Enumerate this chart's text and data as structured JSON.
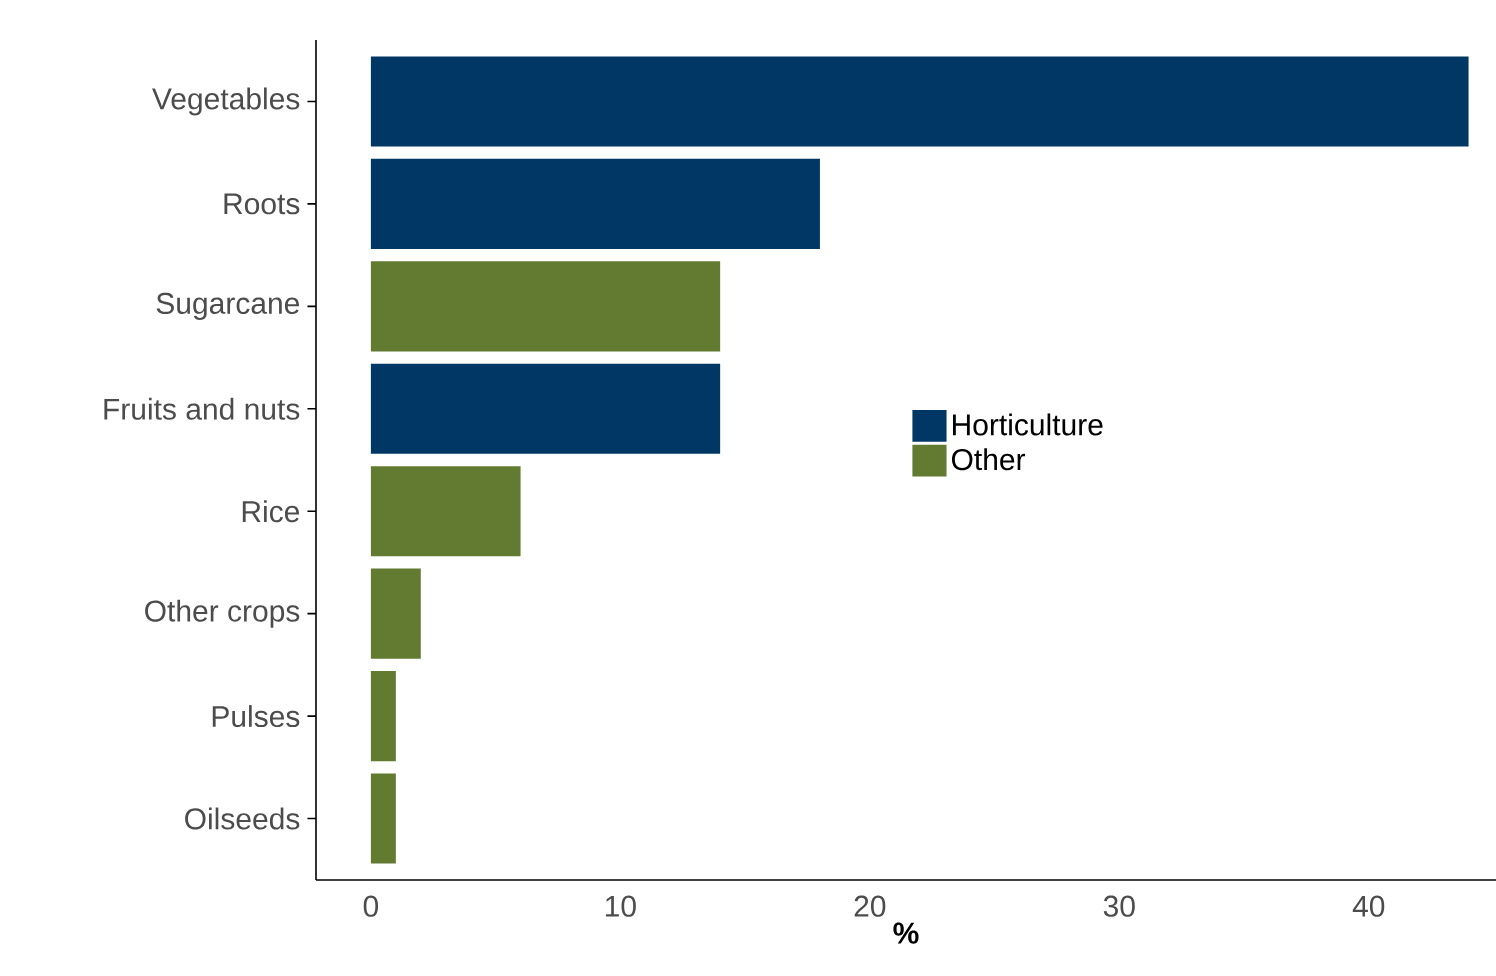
{
  "chart_data": {
    "type": "bar",
    "orientation": "horizontal",
    "xlabel": "%",
    "categories": [
      "Vegetables",
      "Roots",
      "Sugarcane",
      "Fruits and nuts",
      "Rice",
      "Other crops",
      "Pulses",
      "Oilseeds"
    ],
    "series": [
      {
        "name": "Horticulture",
        "color": "#003764",
        "values": [
          44,
          18,
          null,
          14,
          null,
          null,
          null,
          null
        ]
      },
      {
        "name": "Other",
        "color": "#627b30",
        "values": [
          null,
          null,
          14,
          null,
          6,
          2,
          1,
          1
        ]
      }
    ],
    "xlim": [
      -2.2,
      45.1
    ],
    "xticks": [
      0,
      10,
      20,
      30,
      40
    ],
    "grid": false,
    "legend": "right"
  }
}
